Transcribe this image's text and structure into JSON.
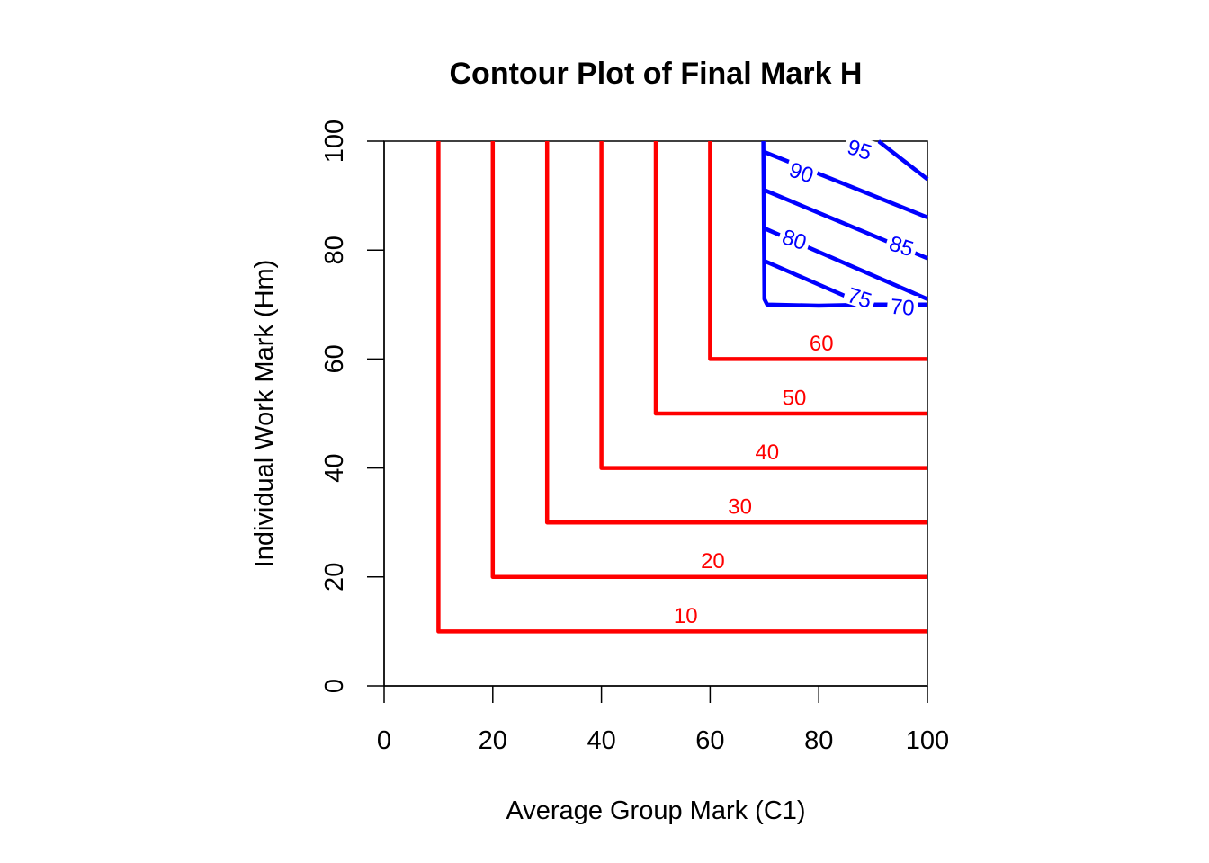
{
  "chart_data": {
    "type": "contour",
    "title": "Contour Plot of Final Mark H",
    "xlabel": "Average Group Mark (C1)",
    "ylabel": "Individual Work Mark (Hm)",
    "xlim": [
      0,
      100
    ],
    "ylim": [
      0,
      100
    ],
    "xticks": [
      "0",
      "20",
      "40",
      "60",
      "80",
      "100"
    ],
    "yticks": [
      "0",
      "20",
      "40",
      "60",
      "80",
      "100"
    ],
    "grid": false,
    "legend": "none",
    "series_colors": {
      "low": "#ff0000",
      "high": "#0000ff"
    },
    "contours": [
      {
        "level": "10",
        "color": "#ff0000",
        "points": [
          [
            10,
            100
          ],
          [
            10,
            10
          ],
          [
            100,
            10
          ]
        ],
        "label_at": [
          55.5,
          12.9
        ]
      },
      {
        "level": "20",
        "color": "#ff0000",
        "points": [
          [
            20,
            100
          ],
          [
            20,
            20
          ],
          [
            100,
            20
          ]
        ],
        "label_at": [
          60.5,
          22.9
        ]
      },
      {
        "level": "30",
        "color": "#ff0000",
        "points": [
          [
            30,
            100
          ],
          [
            30,
            30
          ],
          [
            100,
            30
          ]
        ],
        "label_at": [
          65.5,
          32.9
        ]
      },
      {
        "level": "40",
        "color": "#ff0000",
        "points": [
          [
            40,
            100
          ],
          [
            40,
            40
          ],
          [
            100,
            40
          ]
        ],
        "label_at": [
          70.5,
          42.9
        ]
      },
      {
        "level": "50",
        "color": "#ff0000",
        "points": [
          [
            50,
            100
          ],
          [
            50,
            50
          ],
          [
            100,
            50
          ]
        ],
        "label_at": [
          75.5,
          52.9
        ]
      },
      {
        "level": "60",
        "color": "#ff0000",
        "points": [
          [
            60,
            100
          ],
          [
            60,
            60
          ],
          [
            100,
            60
          ]
        ],
        "label_at": [
          80.5,
          62.9
        ]
      },
      {
        "level": "70",
        "color": "#0000ff",
        "points": [
          [
            69.8,
            100
          ],
          [
            70.0,
            71
          ],
          [
            70.5,
            70
          ],
          [
            80,
            69.8
          ],
          [
            90,
            70
          ],
          [
            100,
            70
          ]
        ],
        "label_at": [
          95.4,
          69.5
        ],
        "label_angle": 5
      },
      {
        "level": "75",
        "color": "#0000ff",
        "points": [
          [
            70,
            78
          ],
          [
            85,
            71.5
          ]
        ],
        "label_at": [
          87.5,
          71.2
        ],
        "label_angle": 18
      },
      {
        "level": "80",
        "color": "#0000ff",
        "points": [
          [
            70,
            84
          ],
          [
            70,
            84
          ],
          [
            100,
            71
          ]
        ],
        "label_at": [
          75.5,
          81.9
        ],
        "label_angle": 18
      },
      {
        "level": "85",
        "color": "#0000ff",
        "points": [
          [
            70,
            91
          ],
          [
            100,
            78.5
          ]
        ],
        "label_at": [
          95.2,
          80.7
        ],
        "label_angle": 18
      },
      {
        "level": "90",
        "color": "#0000ff",
        "points": [
          [
            70,
            98
          ],
          [
            100,
            86
          ]
        ],
        "label_at": [
          76.8,
          94.2
        ],
        "label_angle": 18
      },
      {
        "level": "95",
        "color": "#0000ff",
        "points": [
          [
            91,
            100
          ],
          [
            100,
            93
          ]
        ],
        "label_at": [
          87.5,
          98.4
        ],
        "label_angle": 18
      }
    ]
  }
}
